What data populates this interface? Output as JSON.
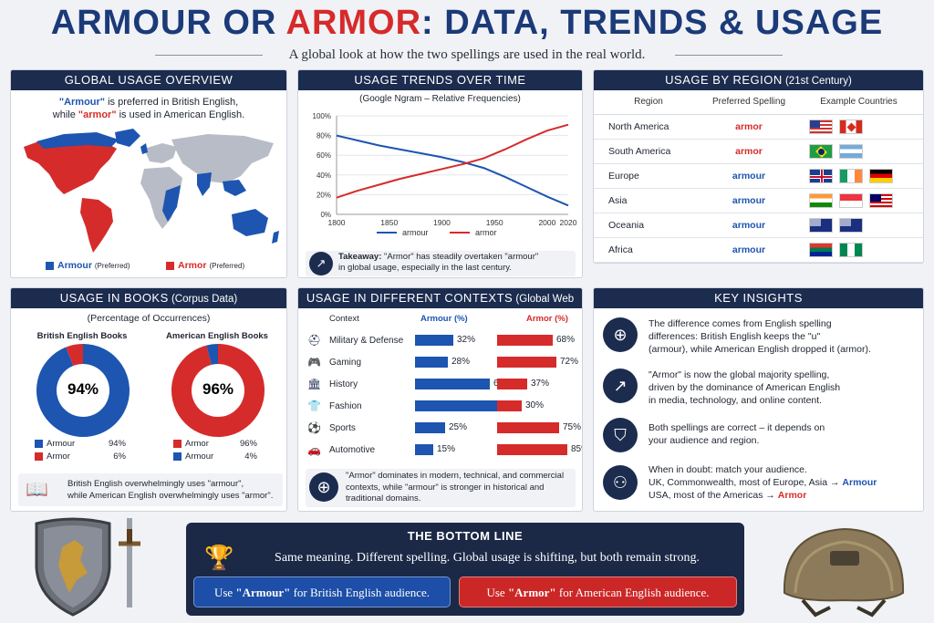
{
  "title": {
    "part1": "ARMOUR",
    "part2": " OR ",
    "part3": "ARMOR",
    "part4": ": DATA, TRENDS & USAGE"
  },
  "subtitle": "A global look at how the two spellings are used in the real world.",
  "global": {
    "header": "GLOBAL USAGE OVERVIEW",
    "line1_pre": "\"Armour\"",
    "line1_post": " is preferred in British English,",
    "line2_pre": "while ",
    "line2_mid": "\"armor\"",
    "line2_post": " is used in American English.",
    "legend_armour": "Armour",
    "legend_armour_note": "(Preferred)",
    "legend_armor": "Armor",
    "legend_armor_note": "(Preferred)"
  },
  "trends": {
    "header": "USAGE TRENDS OVER TIME",
    "subtitle": "(Google Ngram – Relative Frequencies)",
    "takeaway_label": "Takeaway:",
    "takeaway_text": " \"Armor\" has steadily overtaken \"armour\"",
    "takeaway_text2": "in global usage, especially in the last century."
  },
  "region": {
    "header": "USAGE BY REGION",
    "header_note": " (21st Century)",
    "col1": "Region",
    "col2": "Preferred Spelling",
    "col3": "Example Countries",
    "rows": [
      {
        "region": "North America",
        "spelling": "armor",
        "flags": [
          "us",
          "ca"
        ]
      },
      {
        "region": "South America",
        "spelling": "armor",
        "flags": [
          "br",
          "ar"
        ]
      },
      {
        "region": "Europe",
        "spelling": "armour",
        "flags": [
          "gb",
          "ie",
          "de"
        ]
      },
      {
        "region": "Asia",
        "spelling": "armour",
        "flags": [
          "in",
          "sg",
          "my"
        ]
      },
      {
        "region": "Oceania",
        "spelling": "armour",
        "flags": [
          "au",
          "nz"
        ]
      },
      {
        "region": "Africa",
        "spelling": "armour",
        "flags": [
          "za",
          "ng"
        ]
      }
    ]
  },
  "books": {
    "header": "USAGE IN BOOKS",
    "header_note": " (Corpus Data)",
    "subtitle": "(Percentage of Occurrences)",
    "british_title": "British English Books",
    "american_title": "American English Books",
    "british_center": "94%",
    "american_center": "96%",
    "british_legend": [
      {
        "label": "Armour",
        "value": "94%"
      },
      {
        "label": "Armor",
        "value": "6%"
      }
    ],
    "american_legend": [
      {
        "label": "Armor",
        "value": "96%"
      },
      {
        "label": "Armour",
        "value": "4%"
      }
    ],
    "note1": "British English overwhelmingly uses \"armour\",",
    "note2": "while American English overwhelmingly uses \"armor\"."
  },
  "contexts": {
    "header": "USAGE IN DIFFERENT CONTEXTS",
    "header_note": " (Global Web Data)",
    "col_context": "Context",
    "col_armour": "Armour (%)",
    "col_armor": "Armor (%)",
    "note1": "\"Armor\" dominates in modern, technical, and commercial",
    "note2": "contexts, while \"armour\" is stronger in historical and",
    "note3": "traditional domains."
  },
  "insights": {
    "header": "KEY INSIGHTS",
    "i1": [
      "The difference comes from English spelling",
      "differences: British English keeps the \"u\"",
      "(armour), while American English dropped it (armor)."
    ],
    "i2": [
      "\"Armor\" is now the global majority spelling,",
      "driven by the dominance of American English",
      "in media, technology, and online content."
    ],
    "i3": [
      "Both spellings are correct – it depends on",
      "your audience and region."
    ],
    "i4a": "When in doubt: match your audience.",
    "i4b_pre": "UK, Commonwealth, most of Europe, Asia → ",
    "i4b_word": "Armour",
    "i4c_pre": "USA, most of the Americas → ",
    "i4c_word": "Armor"
  },
  "bottom": {
    "header": "THE BOTTOM LINE",
    "text": "Same meaning. Different spelling. Global usage is shifting, but both remain strong.",
    "btn1_pre": "Use ",
    "btn1_word": "\"Armour\"",
    "btn1_post": " for British English audience.",
    "btn2_pre": "Use ",
    "btn2_word": "\"Armor\"",
    "btn2_post": " for American English audience."
  },
  "colors": {
    "armour": "#1d55b0",
    "armor": "#d62b2b",
    "navy": "#1c2c4f"
  },
  "chart_data": [
    {
      "type": "line",
      "title": "USAGE TRENDS OVER TIME",
      "subtitle": "(Google Ngram – Relative Frequencies)",
      "x": [
        1800,
        1820,
        1840,
        1860,
        1880,
        1900,
        1920,
        1940,
        1960,
        1980,
        2000,
        2020
      ],
      "xticks": [
        "1800",
        "1850",
        "1900",
        "1950",
        "2000",
        "2020"
      ],
      "yticks": [
        "0%",
        "20%",
        "40%",
        "60%",
        "80%",
        "100%"
      ],
      "ylim": [
        0,
        100
      ],
      "series": [
        {
          "name": "armour",
          "values": [
            80,
            75,
            70,
            66,
            62,
            58,
            53,
            47,
            38,
            28,
            18,
            9
          ]
        },
        {
          "name": "armor",
          "values": [
            17,
            24,
            30,
            36,
            41,
            46,
            51,
            57,
            66,
            76,
            85,
            91
          ]
        }
      ],
      "legend": "bottom"
    },
    {
      "type": "pie",
      "title": "British English Books",
      "labels": [
        "Armour",
        "Armor"
      ],
      "values": [
        94,
        6
      ]
    },
    {
      "type": "pie",
      "title": "American English Books",
      "labels": [
        "Armor",
        "Armour"
      ],
      "values": [
        96,
        4
      ]
    },
    {
      "type": "bar",
      "title": "USAGE IN DIFFERENT CONTEXTS",
      "categories": [
        "Military & Defense",
        "Gaming",
        "History",
        "Fashion",
        "Sports",
        "Automotive"
      ],
      "series": [
        {
          "name": "Armour (%)",
          "values": [
            32,
            28,
            63,
            70,
            25,
            15
          ]
        },
        {
          "name": "Armor (%)",
          "values": [
            68,
            72,
            37,
            30,
            75,
            85
          ]
        }
      ]
    }
  ]
}
